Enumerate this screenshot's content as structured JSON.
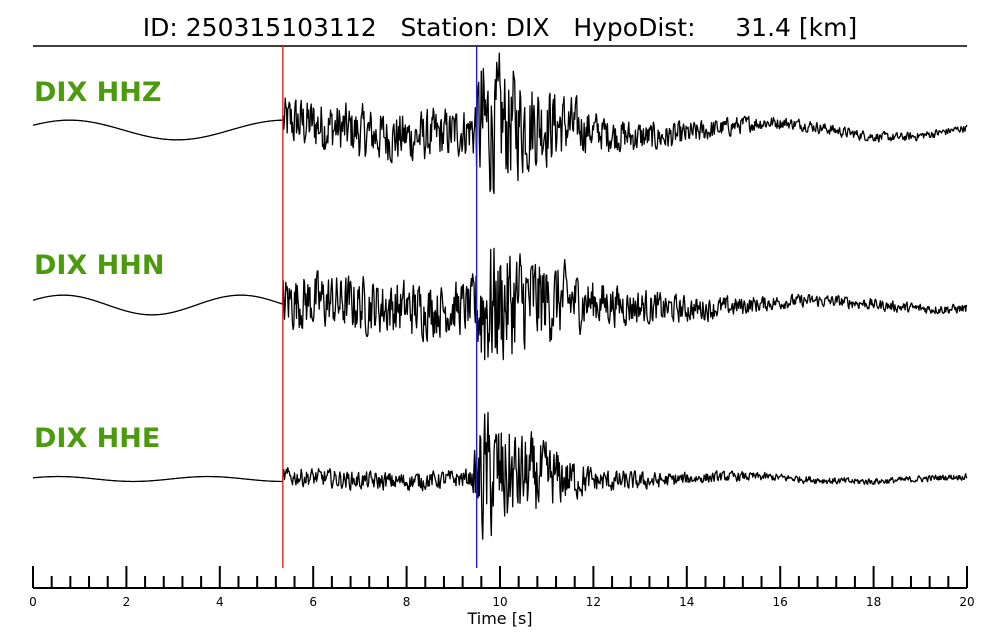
{
  "chart_data": {
    "type": "line",
    "title": "ID: 250315103112   Station: DIX   HypoDist:     31.4 [km]",
    "xlabel": "Time [s]",
    "xlim": [
      0,
      20
    ],
    "xticks": [
      0,
      2,
      4,
      6,
      8,
      10,
      12,
      14,
      16,
      18,
      20
    ],
    "minor_tick_step": 0.4,
    "picks": [
      {
        "phase": "P",
        "time": 5.35,
        "color": "#e8231b"
      },
      {
        "phase": "S",
        "time": 9.5,
        "color": "#1f1fd6"
      }
    ],
    "traces": [
      {
        "name": "DIX HHZ",
        "pre_event": {
          "periods": [
            4.6
          ],
          "amps": [
            0.12
          ]
        },
        "envelope": {
          "times": [
            5.35,
            9.4,
            9.6,
            10.4,
            12,
            14,
            16,
            20
          ],
          "amps": [
            0.35,
            0.33,
            0.95,
            0.7,
            0.25,
            0.16,
            0.08,
            0.05
          ]
        },
        "long_period": {
          "period": 5.2,
          "amp": 0.09
        }
      },
      {
        "name": "DIX HHN",
        "pre_event": {
          "periods": [
            3.8
          ],
          "amps": [
            0.12
          ]
        },
        "envelope": {
          "times": [
            5.35,
            9.4,
            9.6,
            10.4,
            12,
            14,
            16,
            20
          ],
          "amps": [
            0.38,
            0.35,
            0.95,
            0.72,
            0.3,
            0.17,
            0.09,
            0.06
          ]
        },
        "long_period": {
          "period": 5.5,
          "amp": 0.05
        }
      },
      {
        "name": "DIX HHE",
        "pre_event": {
          "periods": [
            3.2
          ],
          "amps": [
            0.03
          ]
        },
        "envelope": {
          "times": [
            5.35,
            9.4,
            9.6,
            10.4,
            12,
            14,
            16,
            20
          ],
          "amps": [
            0.12,
            0.12,
            0.9,
            0.6,
            0.16,
            0.08,
            0.05,
            0.04
          ]
        },
        "long_period": {
          "period": 5.0,
          "amp": 0.03
        }
      }
    ]
  }
}
